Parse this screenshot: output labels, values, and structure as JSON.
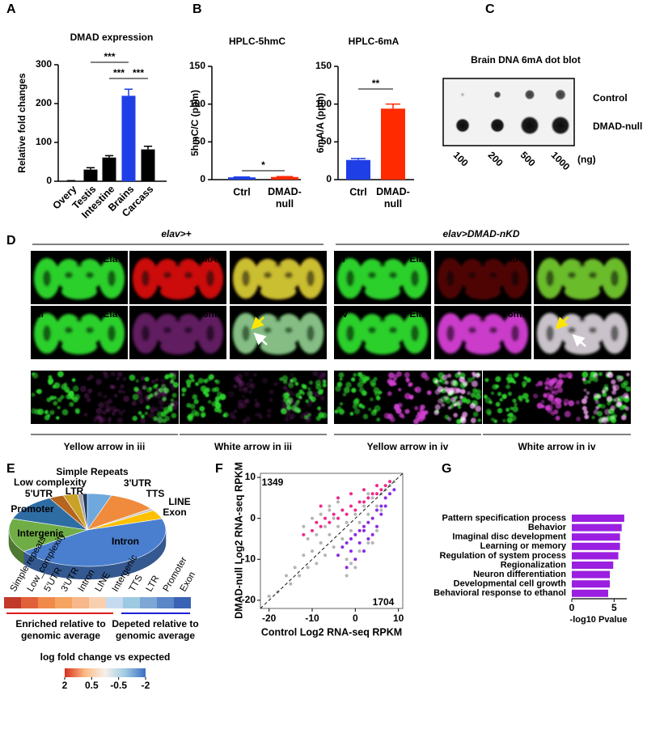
{
  "panel_labels": [
    "A",
    "B",
    "C",
    "D",
    "E",
    "F",
    "G"
  ],
  "chart_data": [
    {
      "type": "bar",
      "title": "DMAD expression",
      "ylabel": "Relative fold changes",
      "categories": [
        "Overy",
        "Testis",
        "Intestine",
        "Brains",
        "Carcass"
      ],
      "values": [
        1,
        30,
        61,
        220,
        82
      ],
      "errors": [
        0.5,
        5,
        5,
        17,
        8
      ],
      "colors": [
        "#000000",
        "#000000",
        "#000000",
        "#1f3fe6",
        "#000000"
      ],
      "label_colors": [
        "#000000",
        "#000000",
        "#000000",
        "#1f3fe6",
        "#000000"
      ],
      "ylim": [
        0,
        300
      ],
      "yticks": [
        0,
        100,
        200,
        300
      ],
      "annotations": [
        "***",
        "***",
        "***"
      ]
    },
    {
      "type": "bar",
      "title": "HPLC-5hmC",
      "ylabel": "5hmC/C (ppm)",
      "categories": [
        "Ctrl",
        "DMAD-\nnull"
      ],
      "values": [
        3,
        3.5
      ],
      "errors": [
        0.5,
        0.5
      ],
      "colors": [
        "#1f3fe6",
        "#ff2a00"
      ],
      "label_colors": [
        "#000000",
        "#000000"
      ],
      "ylim": [
        0,
        150
      ],
      "yticks": [
        0,
        50,
        100,
        150
      ],
      "annotations": [
        "*"
      ]
    },
    {
      "type": "bar",
      "title": "HPLC-6mA",
      "ylabel": "6mA/A (ppm)",
      "categories": [
        "Ctrl",
        "DMAD-\nnull"
      ],
      "values": [
        26,
        94
      ],
      "errors": [
        2,
        6
      ],
      "colors": [
        "#1f3fe6",
        "#ff2a00"
      ],
      "label_colors": [
        "#000000",
        "#000000"
      ],
      "ylim": [
        0,
        150
      ],
      "yticks": [
        0,
        50,
        100,
        150
      ],
      "annotations": [
        "**"
      ]
    },
    {
      "type": "pie",
      "categories": [
        "3'UTR",
        "TTS",
        "LINE",
        "Exon",
        "Intron",
        "Intergenic",
        "Promoter",
        "5'UTR",
        "LTR",
        "Low complexity",
        "Simple Repeats"
      ],
      "values": [
        5,
        10,
        1,
        4,
        45,
        15,
        12,
        3,
        3,
        1,
        1
      ],
      "colors": [
        "#6fa8dc",
        "#f08a3c",
        "#c8c8c8",
        "#ffc000",
        "#4a7fcf",
        "#70ad47",
        "#2e6da4",
        "#b5651d",
        "#c9a227",
        "#a6a6a6",
        "#1f3864"
      ],
      "label_colors": [
        "#6fa8dc",
        "#f08a3c",
        "#bdbdbd",
        "#ffc000",
        "#ffffff",
        "#ffffff",
        "#2e6da4",
        "#b5651d",
        "#c9a227",
        "#8c8c8c",
        "#1f4e79"
      ]
    },
    {
      "type": "heatmap",
      "categories": [
        "Simple repeats",
        "Low_complexity",
        "5'UTR",
        "3'UTR",
        "Intron",
        "LINE",
        "Intergenic",
        "TTS",
        "LTR",
        "Promoter",
        "Exon"
      ],
      "values": [
        2.1,
        1.6,
        1.2,
        1.0,
        0.8,
        0.5,
        -0.4,
        -0.6,
        -0.9,
        -1.2,
        -1.8
      ],
      "colors": [
        "#c0392b",
        "#e0603a",
        "#f08a4b",
        "#f4a460",
        "#f6b88a",
        "#f8d0b0",
        "#c6dbef",
        "#9ecae1",
        "#7fa7d6",
        "#5b86c8",
        "#3a63b5"
      ],
      "label_colors": [
        "#e01b1b",
        "#e01b1b",
        "#e01b1b",
        "#e01b1b",
        "#e01b1b",
        "#e01b1b",
        "#1f1fd6",
        "#1f1fd6",
        "#1f1fd6",
        "#1f1fd6",
        "#1f1fd6"
      ],
      "groups": [
        {
          "label": "Enriched relative to\ngenomic average",
          "color": "#e01b1b"
        },
        {
          "label": "Depeted relative to\ngenomic average",
          "color": "#1f1fd6"
        }
      ],
      "colorbar": {
        "title": "log fold change vs expected",
        "ticks": [
          2,
          0.5,
          -0.5,
          -2
        ],
        "colors": [
          "#d7301f",
          "#fdbb84",
          "#f5f0ea",
          "#9ecae1",
          "#3a6fc4"
        ]
      }
    },
    {
      "type": "scatter",
      "xlabel": "Control Log2 RNA-seq RPKM",
      "ylabel": "DMAD-null Log2 RNA-seq RPKM",
      "xlim": [
        -22,
        11
      ],
      "ylim": [
        -22,
        11
      ],
      "xticks": [
        -20,
        -10,
        0,
        10
      ],
      "yticks": [
        -20,
        -10,
        0,
        10
      ],
      "annotations": [
        1349,
        1704
      ],
      "annotation_colors": [
        "#f0288c",
        "#8a2be2"
      ],
      "series": [
        {
          "color": "#b4b4b4",
          "x": [
            -20,
            -18,
            -16,
            -15,
            -14,
            -13,
            -12,
            -11,
            -10,
            -9,
            -8,
            -7,
            -6,
            -5,
            -4,
            -3,
            -2,
            -1,
            0,
            1,
            2,
            3,
            4,
            5,
            6,
            7,
            8,
            9,
            -12,
            -10,
            -8,
            -6,
            -4,
            -2,
            0,
            2,
            4,
            6,
            -9,
            -7,
            -5,
            -3,
            -1,
            1,
            3,
            5,
            -11,
            -6,
            -2,
            3
          ],
          "y": [
            -19,
            -18,
            -14,
            -16,
            -12,
            -14,
            -9,
            -12,
            -8,
            -11,
            -6,
            -9,
            -4,
            -7,
            -2,
            -5,
            -1,
            -3,
            1,
            -1,
            3,
            1,
            5,
            3,
            6,
            7,
            8,
            9,
            -2,
            0,
            1,
            3,
            4,
            -10,
            -12,
            -8,
            -6,
            2,
            -4,
            -2,
            0,
            2,
            -11,
            -8,
            -6,
            -3,
            -5,
            2,
            -14,
            6
          ]
        },
        {
          "color": "#8a2be2",
          "x": [
            -4,
            -3,
            -2,
            -1,
            0,
            1,
            2,
            3,
            4,
            5,
            6,
            7,
            8,
            0,
            2,
            4,
            -2,
            1,
            3,
            5,
            6,
            -1,
            2,
            7,
            9
          ],
          "y": [
            -9,
            -7,
            -6,
            -5,
            -4,
            -3,
            -2,
            -1,
            0,
            2,
            3,
            5,
            6,
            -10,
            -8,
            -4,
            -12,
            -6,
            -5,
            -2,
            1,
            -8,
            -3,
            3,
            7
          ]
        },
        {
          "color": "#f0288c",
          "x": [
            -12,
            -10,
            -9,
            -8,
            -7,
            -6,
            -5,
            -4,
            -3,
            -2,
            -1,
            0,
            1,
            2,
            3,
            4,
            5,
            6,
            7,
            8,
            -8,
            -4,
            -1,
            2,
            5
          ],
          "y": [
            -4,
            -3,
            -1,
            -2,
            0,
            -1,
            1,
            0,
            2,
            1,
            3,
            2,
            4,
            4,
            5,
            6,
            6,
            7,
            8,
            9,
            3,
            5,
            6,
            7,
            8
          ]
        }
      ]
    },
    {
      "type": "barh",
      "xlabel": "-log10 Pvalue",
      "categories": [
        "Pattern specification process",
        "Behavior",
        "Imaginal disc development",
        "Learning or memory",
        "Regulation of system process",
        "Regionalization",
        "Neuron differentiation",
        "Developmental cell growth",
        "Behavioral response to ethanol"
      ],
      "values": [
        6.2,
        5.9,
        5.7,
        5.7,
        5.5,
        4.9,
        4.5,
        4.5,
        4.3
      ],
      "color": "#9b1fe0",
      "label_colors": [
        "#000000",
        "#e0102a",
        "#000000",
        "#e0102a",
        "#000000",
        "#000000",
        "#e0102a",
        "#000000",
        "#000000"
      ],
      "xlim": [
        0,
        6.5
      ],
      "xticks": [
        0,
        5
      ]
    }
  ],
  "dot_blot": {
    "title": "Brain DNA 6mA dot blot",
    "rows": [
      "Control",
      "DMAD-null"
    ],
    "columns": [
      "100",
      "200",
      "500",
      "1000"
    ],
    "unit": "(ng)"
  },
  "imaging": {
    "conditions": [
      "elav>+",
      "elav>DMAD-nKD"
    ],
    "panels": [
      {
        "label": "i",
        "channels": [
          "Elav",
          "DMAD"
        ]
      },
      {
        "label": "ii",
        "channels": [
          "Elav",
          "DMAD"
        ]
      },
      {
        "label": "iii",
        "channels": [
          "Elav",
          "6mA"
        ]
      },
      {
        "label": "iv",
        "channels": [
          "Elav",
          "6mA"
        ]
      }
    ],
    "captions": [
      "Yellow arrow in iii",
      "White arrow in iii",
      "Yellow arrow in iv",
      "White arrow in iv"
    ]
  }
}
